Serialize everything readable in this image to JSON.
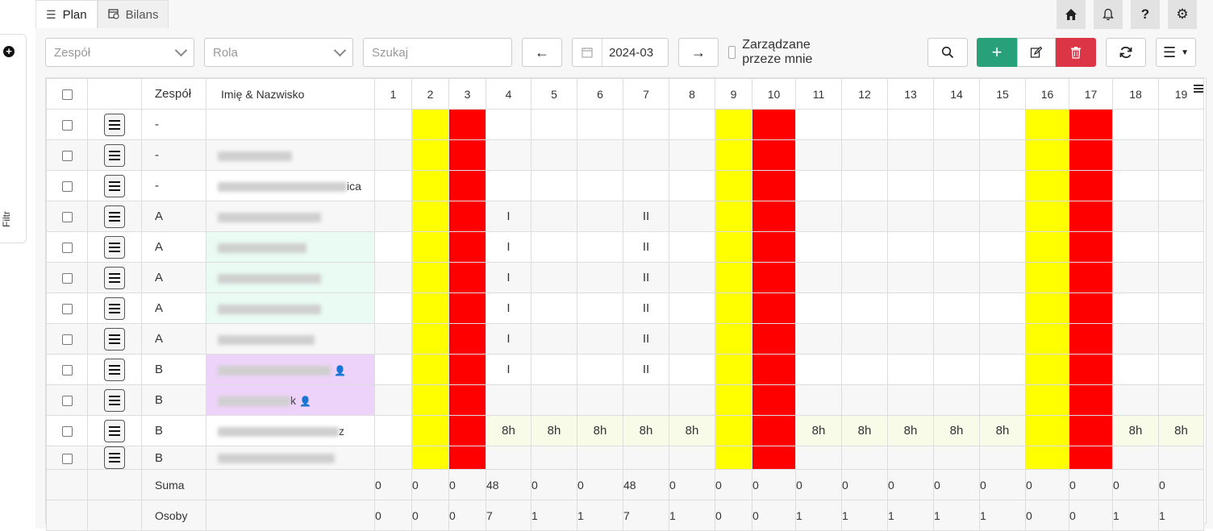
{
  "filter": {
    "label": "Filtr",
    "add_icon": "plus-circle-icon"
  },
  "tabs": [
    {
      "label": "Plan",
      "icon": "list-icon",
      "active": true
    },
    {
      "label": "Bilans",
      "icon": "calendar-clock-icon",
      "active": false
    }
  ],
  "top_icons": [
    "home-icon",
    "bell-icon",
    "help-icon",
    "gear-icon"
  ],
  "toolbar": {
    "team_placeholder": "Zespół",
    "role_placeholder": "Rola",
    "search_placeholder": "Szukaj",
    "date_value": "2024-03",
    "managed_by_me_label": "Zarządzane przeze mnie",
    "colors": {
      "add": "#28a079",
      "delete": "#dc3545"
    }
  },
  "table": {
    "headers": {
      "team": "Zespół",
      "name": "Imię & Nazwisko"
    },
    "days": [
      "1",
      "2",
      "3",
      "4",
      "5",
      "6",
      "7",
      "8",
      "9",
      "10",
      "11",
      "12",
      "13",
      "14",
      "15",
      "16",
      "17",
      "18",
      "19"
    ],
    "day_colors": {
      "2": "#ffff00",
      "3": "#ff0000",
      "9": "#ffff00",
      "10": "#ff0000",
      "16": "#ffff00",
      "17": "#ff0000"
    },
    "rows": [
      {
        "team": "-",
        "name_tail": "",
        "cells": {}
      },
      {
        "team": "-",
        "name_tail": "",
        "cells": {}
      },
      {
        "team": "-",
        "name_tail": "ica",
        "cells": {}
      },
      {
        "team": "A",
        "name_tail": "",
        "cells": {
          "4": "I",
          "7": "II"
        }
      },
      {
        "team": "A",
        "name_tail": "",
        "cells": {
          "4": "I",
          "7": "II"
        }
      },
      {
        "team": "A",
        "name_tail": "",
        "cells": {
          "4": "I",
          "7": "II"
        }
      },
      {
        "team": "A",
        "name_tail": "",
        "cells": {
          "4": "I",
          "7": "II"
        }
      },
      {
        "team": "A",
        "name_tail": "",
        "cells": {
          "4": "I",
          "7": "II"
        }
      },
      {
        "team": "B",
        "name_tail": "",
        "cells": {
          "4": "I",
          "7": "II"
        }
      },
      {
        "team": "B",
        "name_tail": "k",
        "cells": {}
      },
      {
        "team": "B",
        "name_tail": "z",
        "cells": {
          "4": "8h",
          "5": "8h",
          "6": "8h",
          "7": "8h",
          "8": "8h",
          "11": "8h",
          "12": "8h",
          "13": "8h",
          "14": "8h",
          "15": "8h",
          "18": "8h",
          "19": "8h"
        }
      },
      {
        "team": "B",
        "name_tail": "",
        "cells": {}
      }
    ],
    "footer": {
      "sum_label": "Suma",
      "people_label": "Osoby",
      "sum": [
        "0",
        "0",
        "0",
        "48",
        "0",
        "0",
        "48",
        "0",
        "0",
        "0",
        "0",
        "0",
        "0",
        "0",
        "0",
        "0",
        "0",
        "0",
        "0"
      ],
      "people": [
        "0",
        "0",
        "0",
        "7",
        "1",
        "1",
        "7",
        "1",
        "0",
        "0",
        "1",
        "1",
        "1",
        "1",
        "1",
        "0",
        "0",
        "1",
        "1"
      ]
    }
  }
}
